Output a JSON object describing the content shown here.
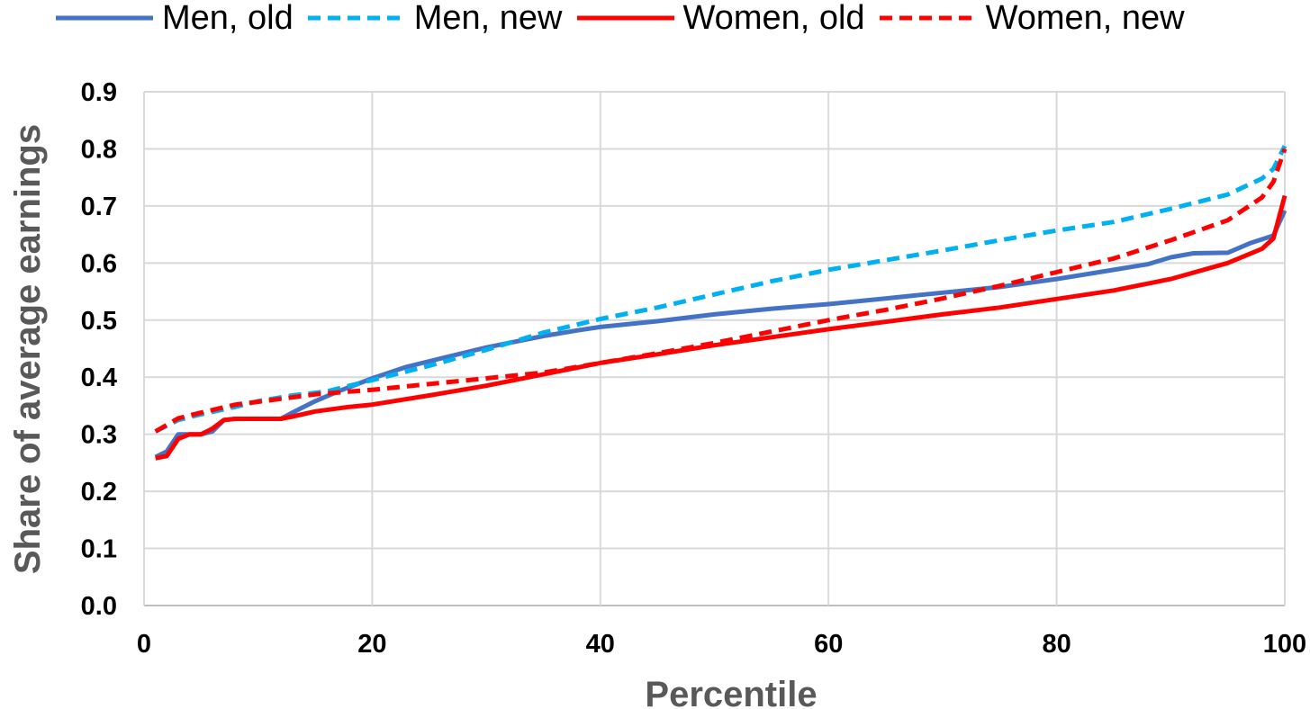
{
  "chart_data": {
    "type": "line",
    "title": "",
    "xlabel": "Percentile",
    "ylabel": "Share of average earnings",
    "xlim": [
      0,
      100
    ],
    "ylim": [
      0,
      0.9
    ],
    "x_ticks": [
      "0",
      "20",
      "40",
      "60",
      "80",
      "100"
    ],
    "y_ticks": [
      "0.0",
      "0.1",
      "0.2",
      "0.3",
      "0.4",
      "0.5",
      "0.6",
      "0.7",
      "0.8",
      "0.9"
    ],
    "grid": true,
    "legend_position": "top",
    "series": [
      {
        "name": "Men, old",
        "color": "#4472C4",
        "style": "solid",
        "points": [
          [
            1,
            0.26
          ],
          [
            2,
            0.27
          ],
          [
            3,
            0.3
          ],
          [
            5,
            0.3
          ],
          [
            6,
            0.305
          ],
          [
            7,
            0.325
          ],
          [
            8,
            0.327
          ],
          [
            12,
            0.327
          ],
          [
            13,
            0.338
          ],
          [
            15,
            0.358
          ],
          [
            17,
            0.375
          ],
          [
            20,
            0.398
          ],
          [
            23,
            0.418
          ],
          [
            25,
            0.428
          ],
          [
            30,
            0.452
          ],
          [
            35,
            0.472
          ],
          [
            38,
            0.482
          ],
          [
            40,
            0.488
          ],
          [
            45,
            0.498
          ],
          [
            50,
            0.51
          ],
          [
            55,
            0.52
          ],
          [
            60,
            0.528
          ],
          [
            65,
            0.538
          ],
          [
            70,
            0.548
          ],
          [
            75,
            0.558
          ],
          [
            80,
            0.572
          ],
          [
            85,
            0.588
          ],
          [
            88,
            0.598
          ],
          [
            90,
            0.61
          ],
          [
            92,
            0.617
          ],
          [
            95,
            0.618
          ],
          [
            97,
            0.635
          ],
          [
            99,
            0.648
          ],
          [
            100,
            0.692
          ]
        ]
      },
      {
        "name": "Men, new",
        "color": "#00B0F0",
        "style": "dashed",
        "points": [
          [
            1,
            0.305
          ],
          [
            3,
            0.325
          ],
          [
            5,
            0.335
          ],
          [
            8,
            0.348
          ],
          [
            10,
            0.358
          ],
          [
            13,
            0.368
          ],
          [
            16,
            0.375
          ],
          [
            20,
            0.395
          ],
          [
            25,
            0.42
          ],
          [
            30,
            0.448
          ],
          [
            35,
            0.478
          ],
          [
            40,
            0.502
          ],
          [
            45,
            0.522
          ],
          [
            50,
            0.545
          ],
          [
            55,
            0.568
          ],
          [
            60,
            0.588
          ],
          [
            65,
            0.605
          ],
          [
            70,
            0.622
          ],
          [
            75,
            0.64
          ],
          [
            80,
            0.657
          ],
          [
            85,
            0.672
          ],
          [
            90,
            0.695
          ],
          [
            95,
            0.72
          ],
          [
            98,
            0.748
          ],
          [
            99,
            0.765
          ],
          [
            100,
            0.805
          ]
        ]
      },
      {
        "name": "Women, old",
        "color": "#FF0000",
        "style": "solid",
        "points": [
          [
            1,
            0.258
          ],
          [
            2,
            0.262
          ],
          [
            3,
            0.292
          ],
          [
            4,
            0.3
          ],
          [
            5,
            0.3
          ],
          [
            6,
            0.31
          ],
          [
            7,
            0.325
          ],
          [
            8,
            0.327
          ],
          [
            12,
            0.327
          ],
          [
            13,
            0.331
          ],
          [
            15,
            0.34
          ],
          [
            18,
            0.348
          ],
          [
            20,
            0.352
          ],
          [
            25,
            0.368
          ],
          [
            30,
            0.385
          ],
          [
            35,
            0.405
          ],
          [
            40,
            0.425
          ],
          [
            45,
            0.44
          ],
          [
            50,
            0.456
          ],
          [
            55,
            0.47
          ],
          [
            60,
            0.484
          ],
          [
            65,
            0.497
          ],
          [
            70,
            0.51
          ],
          [
            75,
            0.522
          ],
          [
            80,
            0.537
          ],
          [
            85,
            0.552
          ],
          [
            90,
            0.572
          ],
          [
            95,
            0.6
          ],
          [
            98,
            0.625
          ],
          [
            99,
            0.643
          ],
          [
            100,
            0.718
          ]
        ]
      },
      {
        "name": "Women, new",
        "color": "#FF0000",
        "style": "dashed",
        "points": [
          [
            1,
            0.305
          ],
          [
            3,
            0.328
          ],
          [
            5,
            0.338
          ],
          [
            8,
            0.352
          ],
          [
            12,
            0.362
          ],
          [
            15,
            0.37
          ],
          [
            20,
            0.378
          ],
          [
            25,
            0.388
          ],
          [
            30,
            0.398
          ],
          [
            35,
            0.408
          ],
          [
            40,
            0.425
          ],
          [
            45,
            0.442
          ],
          [
            50,
            0.46
          ],
          [
            55,
            0.48
          ],
          [
            60,
            0.5
          ],
          [
            65,
            0.518
          ],
          [
            70,
            0.538
          ],
          [
            75,
            0.56
          ],
          [
            80,
            0.584
          ],
          [
            85,
            0.608
          ],
          [
            90,
            0.64
          ],
          [
            95,
            0.675
          ],
          [
            98,
            0.715
          ],
          [
            99,
            0.742
          ],
          [
            100,
            0.8
          ]
        ]
      }
    ]
  }
}
